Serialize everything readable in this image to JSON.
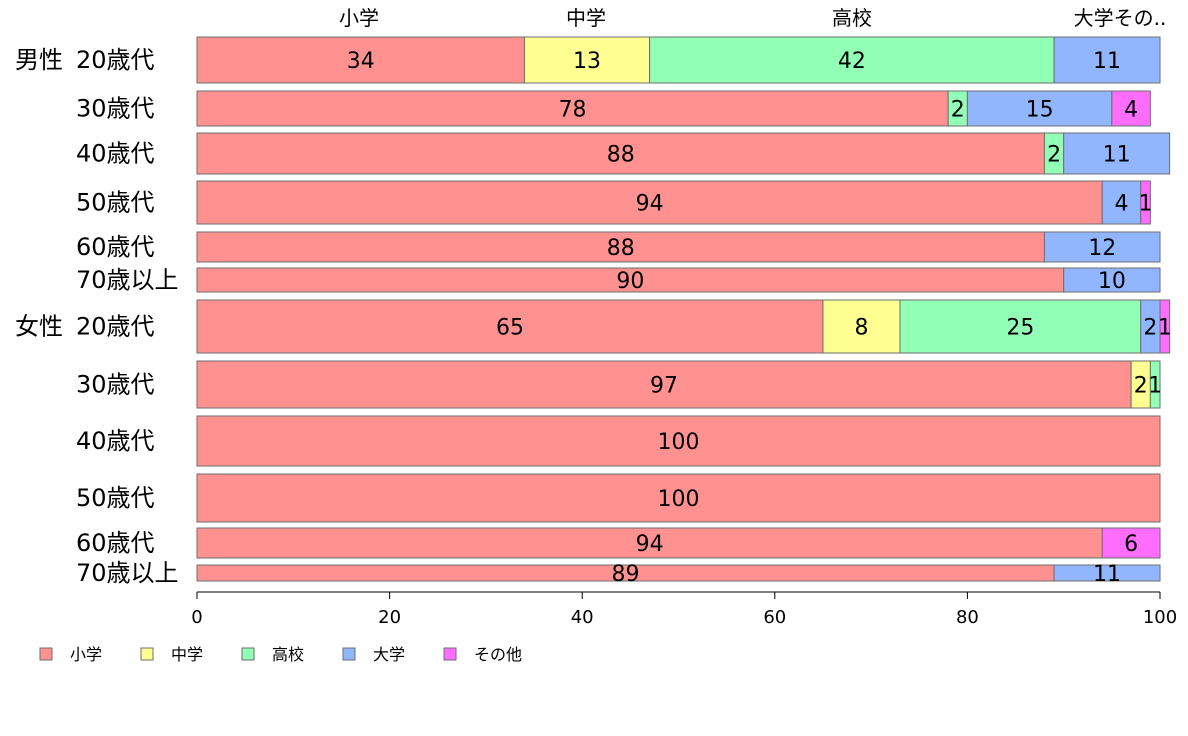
{
  "chart_data": {
    "type": "bar",
    "orientation": "horizontal",
    "stacked": true,
    "series": [
      {
        "name": "小学",
        "color": "#ff9191"
      },
      {
        "name": "中学",
        "color": "#ffff91"
      },
      {
        "name": "高校",
        "color": "#91ffb6"
      },
      {
        "name": "大学",
        "color": "#91b6ff"
      },
      {
        "name": "その他",
        "color": "#ff6dff"
      }
    ],
    "top_labels": [
      "小学",
      "中学",
      "高校",
      "大学その.."
    ],
    "rows": [
      {
        "group": "男性",
        "label": "20歳代",
        "values": [
          34,
          13,
          42,
          11,
          0
        ]
      },
      {
        "label": "30歳代",
        "values": [
          78,
          0,
          2,
          15,
          4
        ]
      },
      {
        "label": "40歳代",
        "values": [
          88,
          0,
          2,
          11,
          0
        ]
      },
      {
        "label": "50歳代",
        "values": [
          94,
          0,
          0,
          4,
          1
        ]
      },
      {
        "label": "60歳代",
        "values": [
          88,
          0,
          0,
          12,
          0
        ]
      },
      {
        "label": "70歳以上",
        "values": [
          90,
          0,
          0,
          10,
          0
        ]
      },
      {
        "group": "女性",
        "label": "20歳代",
        "values": [
          65,
          8,
          25,
          2,
          1
        ]
      },
      {
        "label": "30歳代",
        "values": [
          97,
          2,
          1,
          0,
          0
        ]
      },
      {
        "label": "40歳代",
        "values": [
          100,
          0,
          0,
          0,
          0
        ]
      },
      {
        "label": "50歳代",
        "values": [
          100,
          0,
          0,
          0,
          0
        ]
      },
      {
        "label": "60歳代",
        "values": [
          94,
          0,
          0,
          0,
          6
        ]
      },
      {
        "label": "70歳以上",
        "values": [
          89,
          0,
          0,
          11,
          0
        ]
      }
    ],
    "xlim": [
      0,
      100
    ],
    "xticks": [
      0,
      20,
      40,
      60,
      80,
      100
    ],
    "grid": false,
    "legend_position": "bottom-left"
  }
}
